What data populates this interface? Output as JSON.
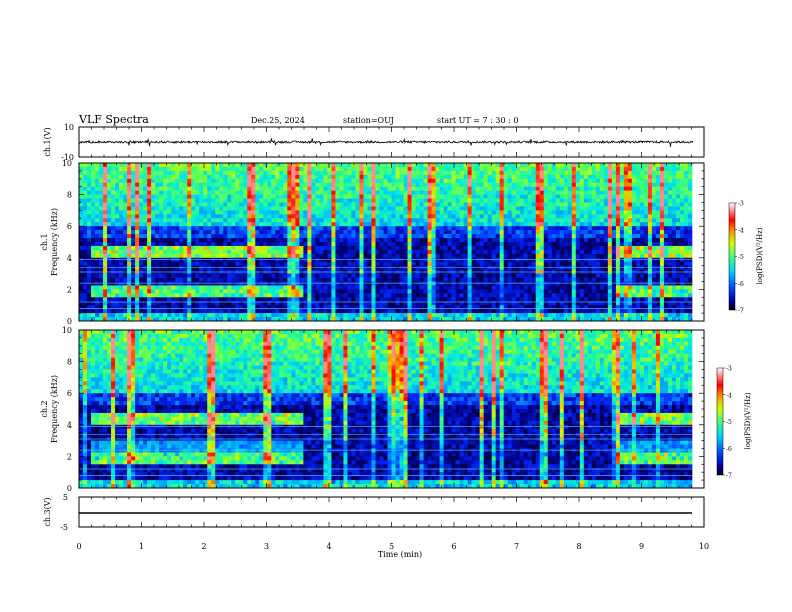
{
  "header": {
    "title": "VLF Spectra",
    "date": "Dec.25, 2024",
    "station": "station=OUJ",
    "start": "start  UT =   7 : 30 : 0"
  },
  "chart_data": [
    {
      "type": "line",
      "name_label": "ch.1(V)",
      "ylabel": "ch.1(V)",
      "ylim": [
        -10,
        10
      ],
      "y_ticks": [
        "10",
        "-10"
      ],
      "x": [
        0,
        10
      ],
      "trace": "noisy waveform around 0 V, amplitude about ±1 V with occasional spikes"
    },
    {
      "type": "heatmap",
      "ylabel": "ch.1\nFrequency (kHz)",
      "ylabel_lines": [
        "ch.1",
        "Frequency (kHz)"
      ],
      "ylim": [
        0,
        10
      ],
      "y_ticks": [
        "0",
        "2",
        "4",
        "6",
        "8",
        "10"
      ],
      "xlim": [
        0,
        10
      ],
      "colorbar": {
        "label": "log(PSD)(V²/Hz)",
        "range": [
          -7,
          -3
        ],
        "ticks": [
          "-3",
          "-4",
          "-5",
          "-6",
          "-7"
        ]
      }
    },
    {
      "type": "heatmap",
      "ylabel_lines": [
        "ch.2",
        "Frequency (kHz)"
      ],
      "ylim": [
        0,
        10
      ],
      "y_ticks": [
        "0",
        "2",
        "4",
        "6",
        "8",
        "10"
      ],
      "xlim": [
        0,
        10
      ],
      "colorbar": {
        "label": "log(PSD)(V²/Hz)",
        "range": [
          -7,
          -3
        ],
        "ticks": [
          "-3",
          "-4",
          "-5",
          "-6",
          "-7"
        ]
      }
    },
    {
      "type": "line",
      "ylabel": "ch.3(V)",
      "ylim": [
        -5,
        5
      ],
      "y_ticks": [
        "5",
        "-5"
      ],
      "x": [
        0,
        9.85
      ],
      "y": [
        -1,
        -1
      ]
    }
  ],
  "x_axis": {
    "label": "Time  (min)",
    "ticks": [
      "0",
      "1",
      "2",
      "3",
      "4",
      "5",
      "6",
      "7",
      "8",
      "9",
      "10"
    ],
    "range": [
      0,
      10
    ]
  },
  "colors": {
    "colormap": [
      "#00007f",
      "#0000ff",
      "#007fff",
      "#00ffff",
      "#7fff7f",
      "#ffff00",
      "#ff7f00",
      "#ff0000",
      "#7f0000",
      "#ffffff"
    ]
  }
}
